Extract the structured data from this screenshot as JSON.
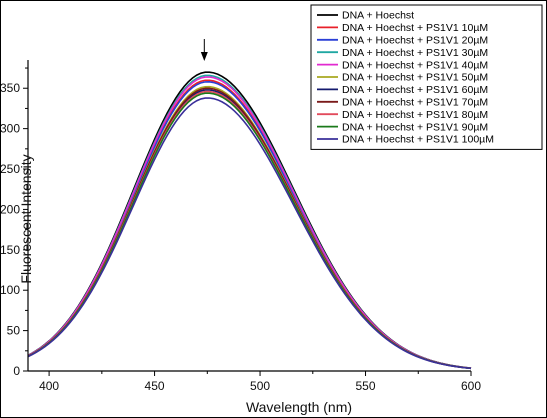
{
  "chart_data": {
    "type": "line",
    "title": "",
    "xlabel": "Wavelength (nm)",
    "ylabel": "Fluorescent Intensity",
    "xlim": [
      390,
      600
    ],
    "ylim": [
      0,
      380
    ],
    "xticks": [
      400,
      450,
      500,
      550,
      600
    ],
    "yticks": [
      0,
      50,
      100,
      150,
      200,
      250,
      300,
      350
    ],
    "grid": false,
    "legend_position": "top-right",
    "annotation": "downward arrow at the emission peak (~475 nm) indicating intensity decrease",
    "peak_wavelength": 475,
    "x": [
      390,
      400,
      410,
      420,
      430,
      440,
      450,
      460,
      470,
      475,
      480,
      490,
      500,
      510,
      520,
      530,
      540,
      550,
      560,
      570,
      580,
      590,
      600
    ],
    "series": [
      {
        "name": "DNA + Hoechst",
        "color": "#000000",
        "peak": 370
      },
      {
        "name": "DNA + Hoechst + PS1V1 10µM",
        "color": "#e8202a",
        "peak": 360
      },
      {
        "name": "DNA + Hoechst + PS1V1 20µM",
        "color": "#2a3fd6",
        "peak": 358
      },
      {
        "name": "DNA + Hoechst + PS1V1 30µM",
        "color": "#1fa7a2",
        "peak": 366
      },
      {
        "name": "DNA + Hoechst + PS1V1 40µM",
        "color": "#e22ad0",
        "peak": 364
      },
      {
        "name": "DNA + Hoechst + PS1V1 50µM",
        "color": "#a8a820",
        "peak": 352
      },
      {
        "name": "DNA + Hoechst + PS1V1 60µM",
        "color": "#141a6e",
        "peak": 348
      },
      {
        "name": "DNA + Hoechst + PS1V1 70µM",
        "color": "#7a1a1a",
        "peak": 350
      },
      {
        "name": "DNA + Hoechst + PS1V1 80µM",
        "color": "#e24a5c",
        "peak": 346
      },
      {
        "name": "DNA + Hoechst + PS1V1 90µM",
        "color": "#1b7a1b",
        "peak": 344
      },
      {
        "name": "DNA + Hoechst + PS1V1 100µM",
        "color": "#3a2f9a",
        "peak": 338
      }
    ]
  }
}
